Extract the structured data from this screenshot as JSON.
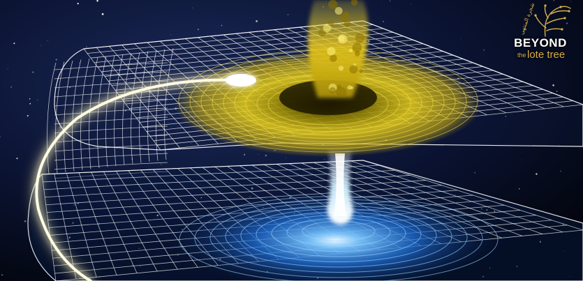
{
  "image": {
    "subject": "wormhole",
    "colors": {
      "space": "#050a1c",
      "grid_line": "#ffffff",
      "upper_glow": "#f2d321",
      "lower_glow": "#3aa0ff",
      "light_trail": "#fff7c0"
    }
  },
  "logo": {
    "line1": "BEYOND",
    "line2_small": "the",
    "line2_large": "lote tree",
    "arabic_mark": "شجرة المنتهى",
    "brand_color": "#d9b24a"
  }
}
